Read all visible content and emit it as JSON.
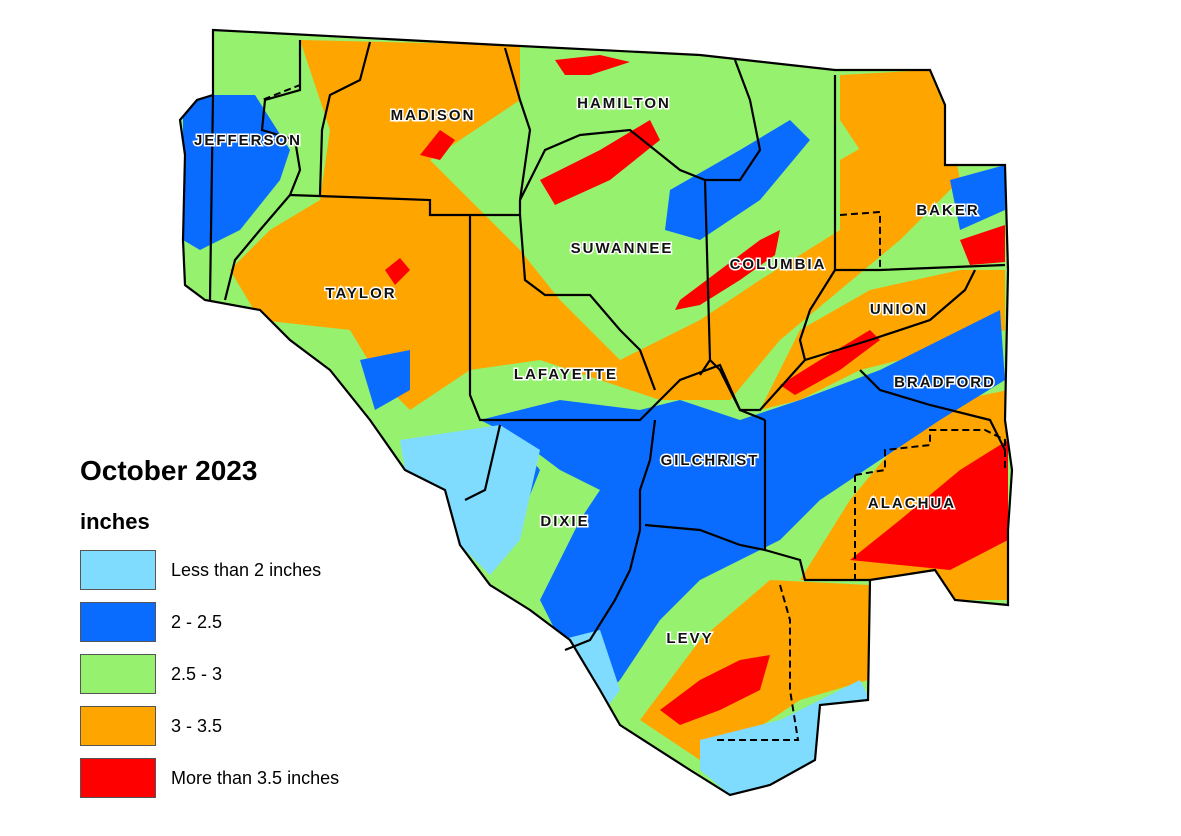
{
  "title": "October 2023",
  "units": "inches",
  "legend": [
    {
      "label": "Less than 2 inches",
      "color": "#7fdcff"
    },
    {
      "label": "2 - 2.5",
      "color": "#0a6cff"
    },
    {
      "label": "2.5 - 3",
      "color": "#96f26e"
    },
    {
      "label": "3 - 3.5",
      "color": "#ffa500"
    },
    {
      "label": "More than 3.5 inches",
      "color": "#ff0000"
    }
  ],
  "counties": {
    "jefferson": "JEFFERSON",
    "madison": "MADISON",
    "hamilton": "HAMILTON",
    "suwannee": "SUWANNEE",
    "columbia": "COLUMBIA",
    "baker": "BAKER",
    "taylor": "TAYLOR",
    "union": "UNION",
    "lafayette": "LAFAYETTE",
    "bradford": "BRADFORD",
    "gilchrist": "GILCHRIST",
    "alachua": "ALACHUA",
    "dixie": "DIXIE",
    "levy": "LEVY"
  }
}
